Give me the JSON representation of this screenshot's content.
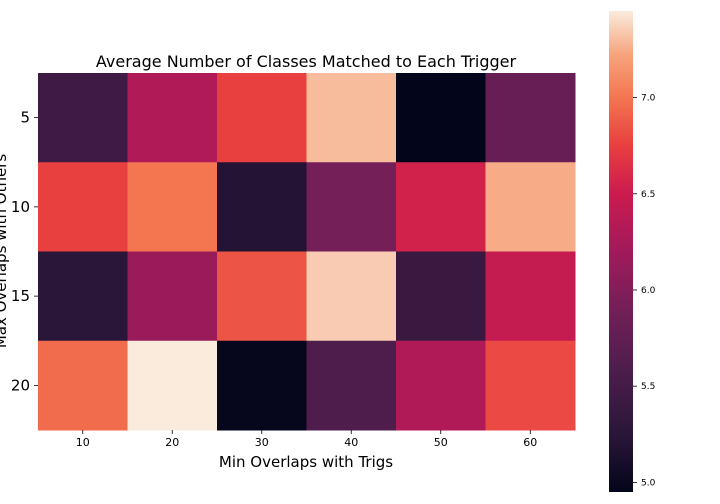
{
  "chart_data": {
    "type": "heatmap",
    "title": "Average Number of Classes Matched to Each Trigger",
    "xlabel": "Min Overlaps with Trigs",
    "ylabel": "Max Overlaps with Others",
    "x_categories": [
      "10",
      "20",
      "30",
      "40",
      "50",
      "60"
    ],
    "y_categories": [
      "5",
      "10",
      "15",
      "20"
    ],
    "values": [
      [
        5.45,
        6.3,
        6.75,
        7.3,
        4.95,
        5.8
      ],
      [
        6.75,
        7.0,
        5.2,
        5.9,
        6.55,
        7.25
      ],
      [
        5.25,
        6.15,
        6.85,
        7.35,
        5.4,
        6.45
      ],
      [
        6.95,
        7.45,
        4.97,
        5.6,
        6.3,
        6.8
      ]
    ],
    "colorbar": {
      "range": [
        4.95,
        7.45
      ],
      "ticks": [
        5.0,
        5.5,
        6.0,
        6.5,
        7.0
      ],
      "tick_labels": [
        "5.0",
        "5.5",
        "6.0",
        "6.5",
        "7.0"
      ],
      "colormap": "rocket"
    }
  }
}
